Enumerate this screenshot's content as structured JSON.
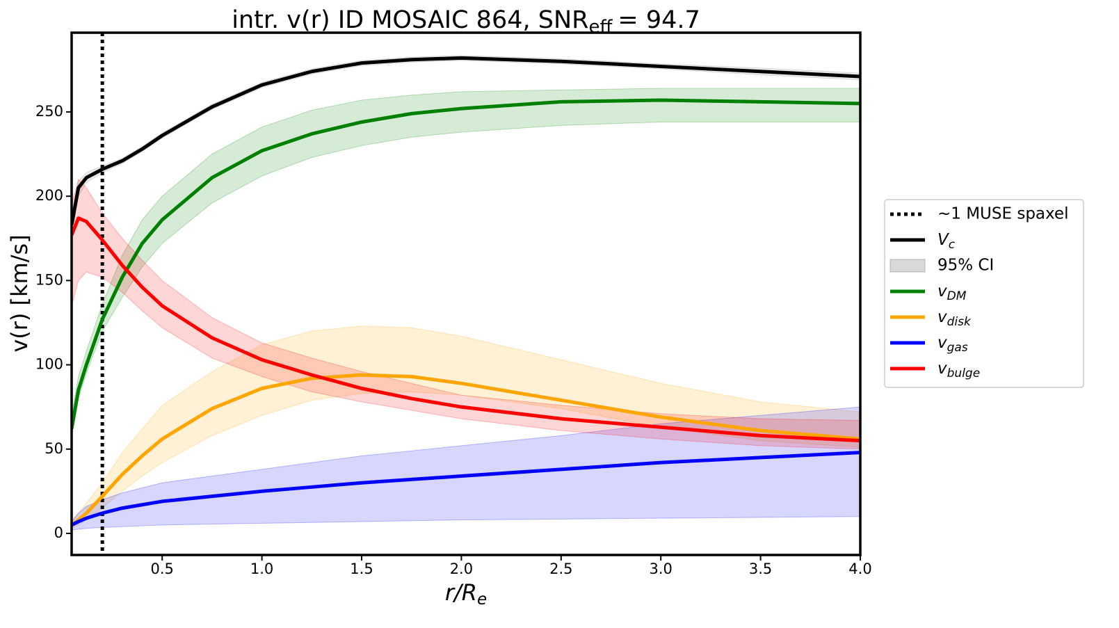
{
  "chart_data": {
    "type": "line",
    "title": "intr. v(r) ID MOSAIC 864, SNR",
    "title_sub": "eff",
    "title_end": "= 94.7",
    "xlabel": "r/R",
    "xlabel_sub": "e",
    "ylabel": "v(r) [km/s]",
    "xlim": [
      0.046,
      4.0
    ],
    "ylim": [
      -12.8,
      297
    ],
    "xticks": [
      {
        "value": 0.5,
        "label": "0.5"
      },
      {
        "value": 1.0,
        "label": "1.0"
      },
      {
        "value": 1.5,
        "label": "1.5"
      },
      {
        "value": 2.0,
        "label": "2.0"
      },
      {
        "value": 2.5,
        "label": "2.5"
      },
      {
        "value": 3.0,
        "label": "3.0"
      },
      {
        "value": 3.5,
        "label": "3.5"
      },
      {
        "value": 4.0,
        "label": "4.0"
      }
    ],
    "yticks": [
      0,
      50,
      100,
      150,
      200,
      250
    ],
    "legend": "outside right",
    "vline": {
      "x": 0.2,
      "label": "~1 MUSE spaxel",
      "color": "#000000"
    },
    "ci_label": "95% CI",
    "ci_color": "#808080",
    "x": [
      0.046,
      0.08,
      0.12,
      0.2,
      0.3,
      0.4,
      0.5,
      0.75,
      1.0,
      1.25,
      1.5,
      1.75,
      2.0,
      2.5,
      3.0,
      3.5,
      4.0
    ],
    "series": [
      {
        "name": "V",
        "name_sub": "c",
        "color": "#000000",
        "band_color": "#808080",
        "values": [
          183,
          205,
          211,
          216,
          221,
          228,
          236,
          253,
          266,
          274,
          279,
          281,
          282,
          280,
          277,
          274,
          271
        ],
        "lower": [
          176,
          200,
          208,
          214,
          219.5,
          226.5,
          234.5,
          251.5,
          264.5,
          272.5,
          277.5,
          279.5,
          280.5,
          278.5,
          275.5,
          272,
          269
        ],
        "upper": [
          188,
          209,
          214,
          218,
          222.5,
          229.5,
          237.5,
          254.5,
          267.5,
          275.5,
          280.5,
          282.5,
          283.5,
          281.5,
          278.5,
          276,
          273
        ]
      },
      {
        "name": "v",
        "name_sub": "DM",
        "color": "#008000",
        "band_color": "#008000",
        "values": [
          62,
          85,
          100,
          127,
          152,
          172,
          186,
          211,
          227,
          237,
          244,
          249,
          252,
          256,
          257,
          256,
          255
        ],
        "lower": [
          58,
          80,
          95,
          120,
          140,
          158,
          172,
          196,
          212,
          223,
          230,
          235,
          238,
          242,
          244,
          244,
          244
        ],
        "upper": [
          70,
          93,
          108,
          136,
          165,
          186,
          200,
          225,
          241,
          251,
          257,
          260,
          262,
          263,
          264,
          264,
          264
        ]
      },
      {
        "name": "v",
        "name_sub": "disk",
        "color": "#ffa500",
        "band_color": "#ffa500",
        "values": [
          5,
          8,
          12,
          22,
          35,
          46,
          56,
          74,
          86,
          92,
          94,
          93,
          89,
          79,
          69,
          61,
          56
        ],
        "lower": [
          3,
          5,
          8,
          15,
          25,
          34,
          42,
          58,
          70,
          79,
          83,
          84,
          82,
          74,
          63,
          55,
          51
        ],
        "upper": [
          8,
          12,
          18,
          30,
          48,
          62,
          76,
          96,
          112,
          120,
          123,
          122,
          117,
          103,
          89,
          78,
          72
        ]
      },
      {
        "name": "v",
        "name_sub": "gas",
        "color": "#0000ff",
        "band_color": "#0000ff",
        "values": [
          5,
          7,
          9,
          12,
          15,
          17,
          19,
          22,
          25,
          27.5,
          30,
          32,
          34,
          38,
          42,
          45,
          48
        ],
        "lower": [
          2,
          2.5,
          3,
          3.5,
          4,
          4.5,
          5,
          5.5,
          6,
          6.5,
          7,
          7.5,
          8,
          8.5,
          9,
          9.5,
          10
        ],
        "upper": [
          7,
          12,
          16,
          20,
          24,
          27,
          30,
          34,
          38,
          42,
          46,
          49,
          52,
          58,
          65,
          70,
          75
        ]
      },
      {
        "name": "v",
        "name_sub": "bulge",
        "color": "#ff0000",
        "band_color": "#ff0000",
        "values": [
          177,
          187,
          185,
          174,
          159,
          146,
          135,
          116,
          103,
          94,
          86,
          80,
          75,
          68,
          63,
          58,
          55
        ],
        "lower": [
          135,
          150,
          155,
          152,
          143,
          132,
          122,
          104,
          93,
          84,
          78,
          73,
          68,
          61,
          56,
          52,
          50
        ],
        "upper": [
          195,
          210,
          205,
          190,
          175,
          162,
          150,
          128,
          113,
          104,
          96,
          89,
          82,
          76,
          71,
          68,
          67
        ]
      }
    ]
  }
}
